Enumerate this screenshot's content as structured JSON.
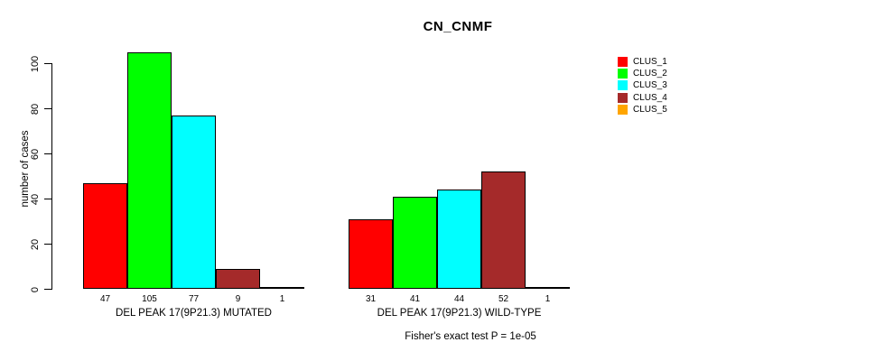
{
  "chart_data": {
    "type": "bar",
    "title": "CN_CNMF",
    "ylabel": "number of cases",
    "xlabel": "",
    "categories": [
      "DEL PEAK 17(9P21.3) MUTATED",
      "DEL PEAK 17(9P21.3) WILD-TYPE"
    ],
    "series": [
      {
        "name": "CLUS_1",
        "color": "#FF0000",
        "values": [
          47,
          31
        ]
      },
      {
        "name": "CLUS_2",
        "color": "#00FF00",
        "values": [
          105,
          41
        ]
      },
      {
        "name": "CLUS_3",
        "color": "#00FFFF",
        "values": [
          77,
          44
        ]
      },
      {
        "name": "CLUS_4",
        "color": "#A52A2A",
        "values": [
          9,
          52
        ]
      },
      {
        "name": "CLUS_5",
        "color": "#FFA500",
        "values": [
          1,
          1
        ]
      }
    ],
    "ylim": [
      0,
      100
    ],
    "yticks": [
      0,
      20,
      40,
      60,
      80,
      100
    ],
    "grid": false,
    "legend_position": "top-right",
    "bar_value_labels_shown": true,
    "annotation": "Fisher's exact test P = 1e-05",
    "axis_color": "#000000",
    "background_color": "#FFFFFF"
  }
}
